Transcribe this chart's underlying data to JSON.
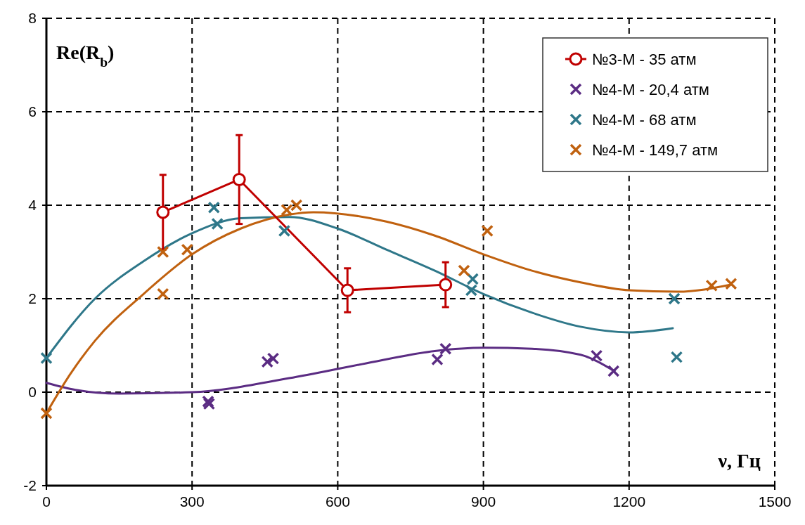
{
  "chart_data": {
    "type": "scatter",
    "xlabel": "ν, Гц",
    "ylabel": "Re(R$_{b}$)",
    "xlim": [
      0,
      1500
    ],
    "xticks": [
      0,
      300,
      600,
      900,
      1200,
      1500
    ],
    "ylim": [
      -2,
      8
    ],
    "yticks": [
      -2,
      0,
      2,
      4,
      6,
      8
    ],
    "grid": true,
    "legend": "top right",
    "series": [
      {
        "name": "№3-М - 35 атм",
        "type": "line",
        "marker": "circle",
        "color": "#c00000",
        "x": [
          240,
          397,
          620,
          822
        ],
        "values": [
          3.85,
          4.55,
          2.18,
          2.3
        ],
        "errors": [
          0.8,
          0.95,
          0.47,
          0.48
        ]
      },
      {
        "name": "№4-М - 20,4 атм",
        "marker": "cross",
        "color": "#5b2c83",
        "x": [
          333,
          335,
          455,
          467,
          805,
          822,
          1133,
          1168
        ],
        "values": [
          -0.2,
          -0.25,
          0.65,
          0.72,
          0.7,
          0.93,
          0.78,
          0.45
        ]
      },
      {
        "name": "№4-М - 68 атм",
        "marker": "cross",
        "color": "#2e7789",
        "x": [
          0,
          345,
          352,
          490,
          875,
          878,
          1293,
          1298
        ],
        "values": [
          0.73,
          3.95,
          3.6,
          3.45,
          2.18,
          2.42,
          2.0,
          0.75
        ]
      },
      {
        "name": "№4-М - 149,7 атм",
        "marker": "cross",
        "color": "#c0610f",
        "x": [
          0,
          240,
          240,
          290,
          495,
          515,
          860,
          908,
          1370,
          1410
        ],
        "values": [
          -0.45,
          2.1,
          3.0,
          3.05,
          3.9,
          4.0,
          2.6,
          3.45,
          2.28,
          2.32
        ]
      },
      {
        "type": "line",
        "marker": "none",
        "color": "#5b2c83",
        "x": [
          0,
          60,
          150,
          300,
          500,
          650,
          800,
          900,
          1000,
          1100,
          1170
        ],
        "values": [
          0.2,
          0.05,
          -0.03,
          0.0,
          0.3,
          0.6,
          0.88,
          0.95,
          0.93,
          0.8,
          0.45
        ]
      },
      {
        "type": "line",
        "marker": "none",
        "color": "#2e7789",
        "x": [
          0,
          100,
          200,
          300,
          400,
          500,
          600,
          700,
          800,
          900,
          1000,
          1100,
          1200,
          1290
        ],
        "values": [
          0.73,
          2.0,
          2.8,
          3.4,
          3.72,
          3.75,
          3.5,
          3.05,
          2.6,
          2.1,
          1.7,
          1.4,
          1.28,
          1.37
        ]
      },
      {
        "type": "line",
        "marker": "none",
        "color": "#c0610f",
        "x": [
          0,
          50,
          100,
          200,
          300,
          400,
          500,
          550,
          700,
          800,
          900,
          1000,
          1100,
          1200,
          1300,
          1410
        ],
        "values": [
          -0.45,
          0.4,
          1.1,
          2.1,
          2.95,
          3.5,
          3.8,
          3.85,
          3.65,
          3.35,
          2.95,
          2.6,
          2.35,
          2.18,
          2.15,
          2.3
        ]
      }
    ]
  }
}
